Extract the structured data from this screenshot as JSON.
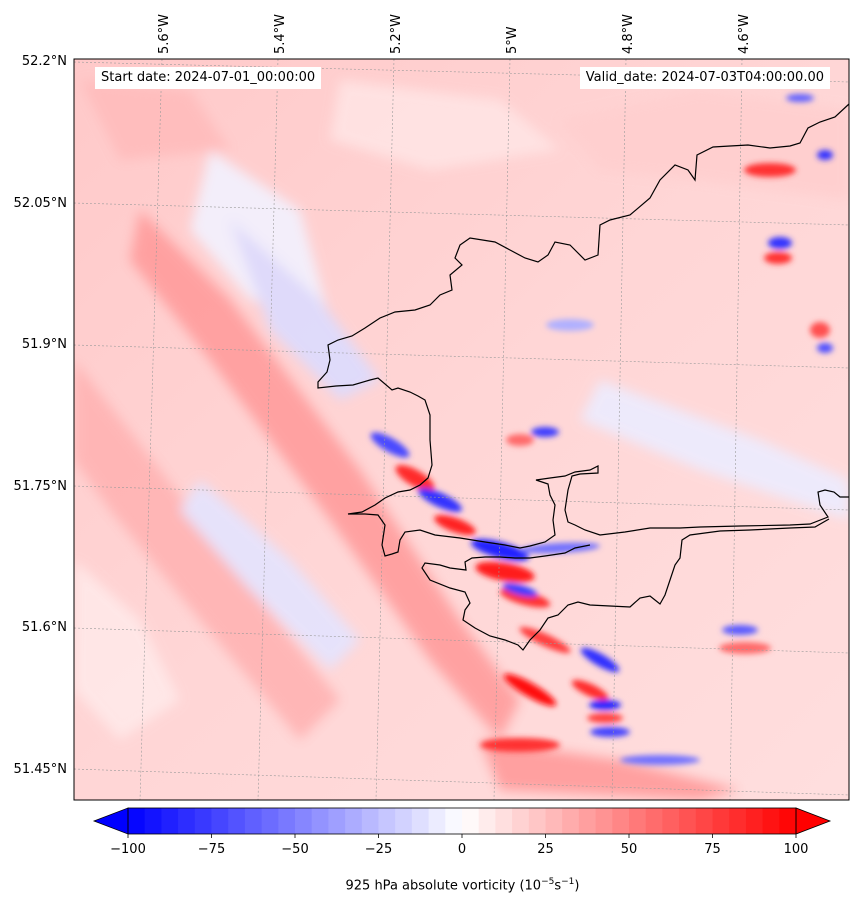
{
  "header": {
    "start_date": "Start date: 2024-07-01_00:00:00",
    "valid_date": "Valid_date: 2024-07-03T04:00:00.00"
  },
  "map": {
    "lon_labels": [
      "5.6°W",
      "5.4°W",
      "5.2°W",
      "5°W",
      "4.8°W",
      "4.6°W"
    ],
    "lat_labels": [
      "52.2°N",
      "52.05°N",
      "51.9°N",
      "51.75°N",
      "51.6°N",
      "51.45°N"
    ],
    "field": "925 hPa absolute vorticity",
    "colormap": "bwr",
    "coastline_color": "#000000"
  },
  "colorbar": {
    "title": "925 hPa absolute vorticity (10",
    "title_exp": "−5",
    "title_mid": "s",
    "title_exp2": "−1",
    "title_end": ")",
    "ticks": [
      "−100",
      "−75",
      "−50",
      "−25",
      "0",
      "25",
      "50",
      "75",
      "100"
    ],
    "range": [
      -100,
      100
    ],
    "extend": "both"
  },
  "colors": {
    "negative": "#0000ff",
    "neutral": "#ffffff",
    "positive": "#ff0000"
  }
}
